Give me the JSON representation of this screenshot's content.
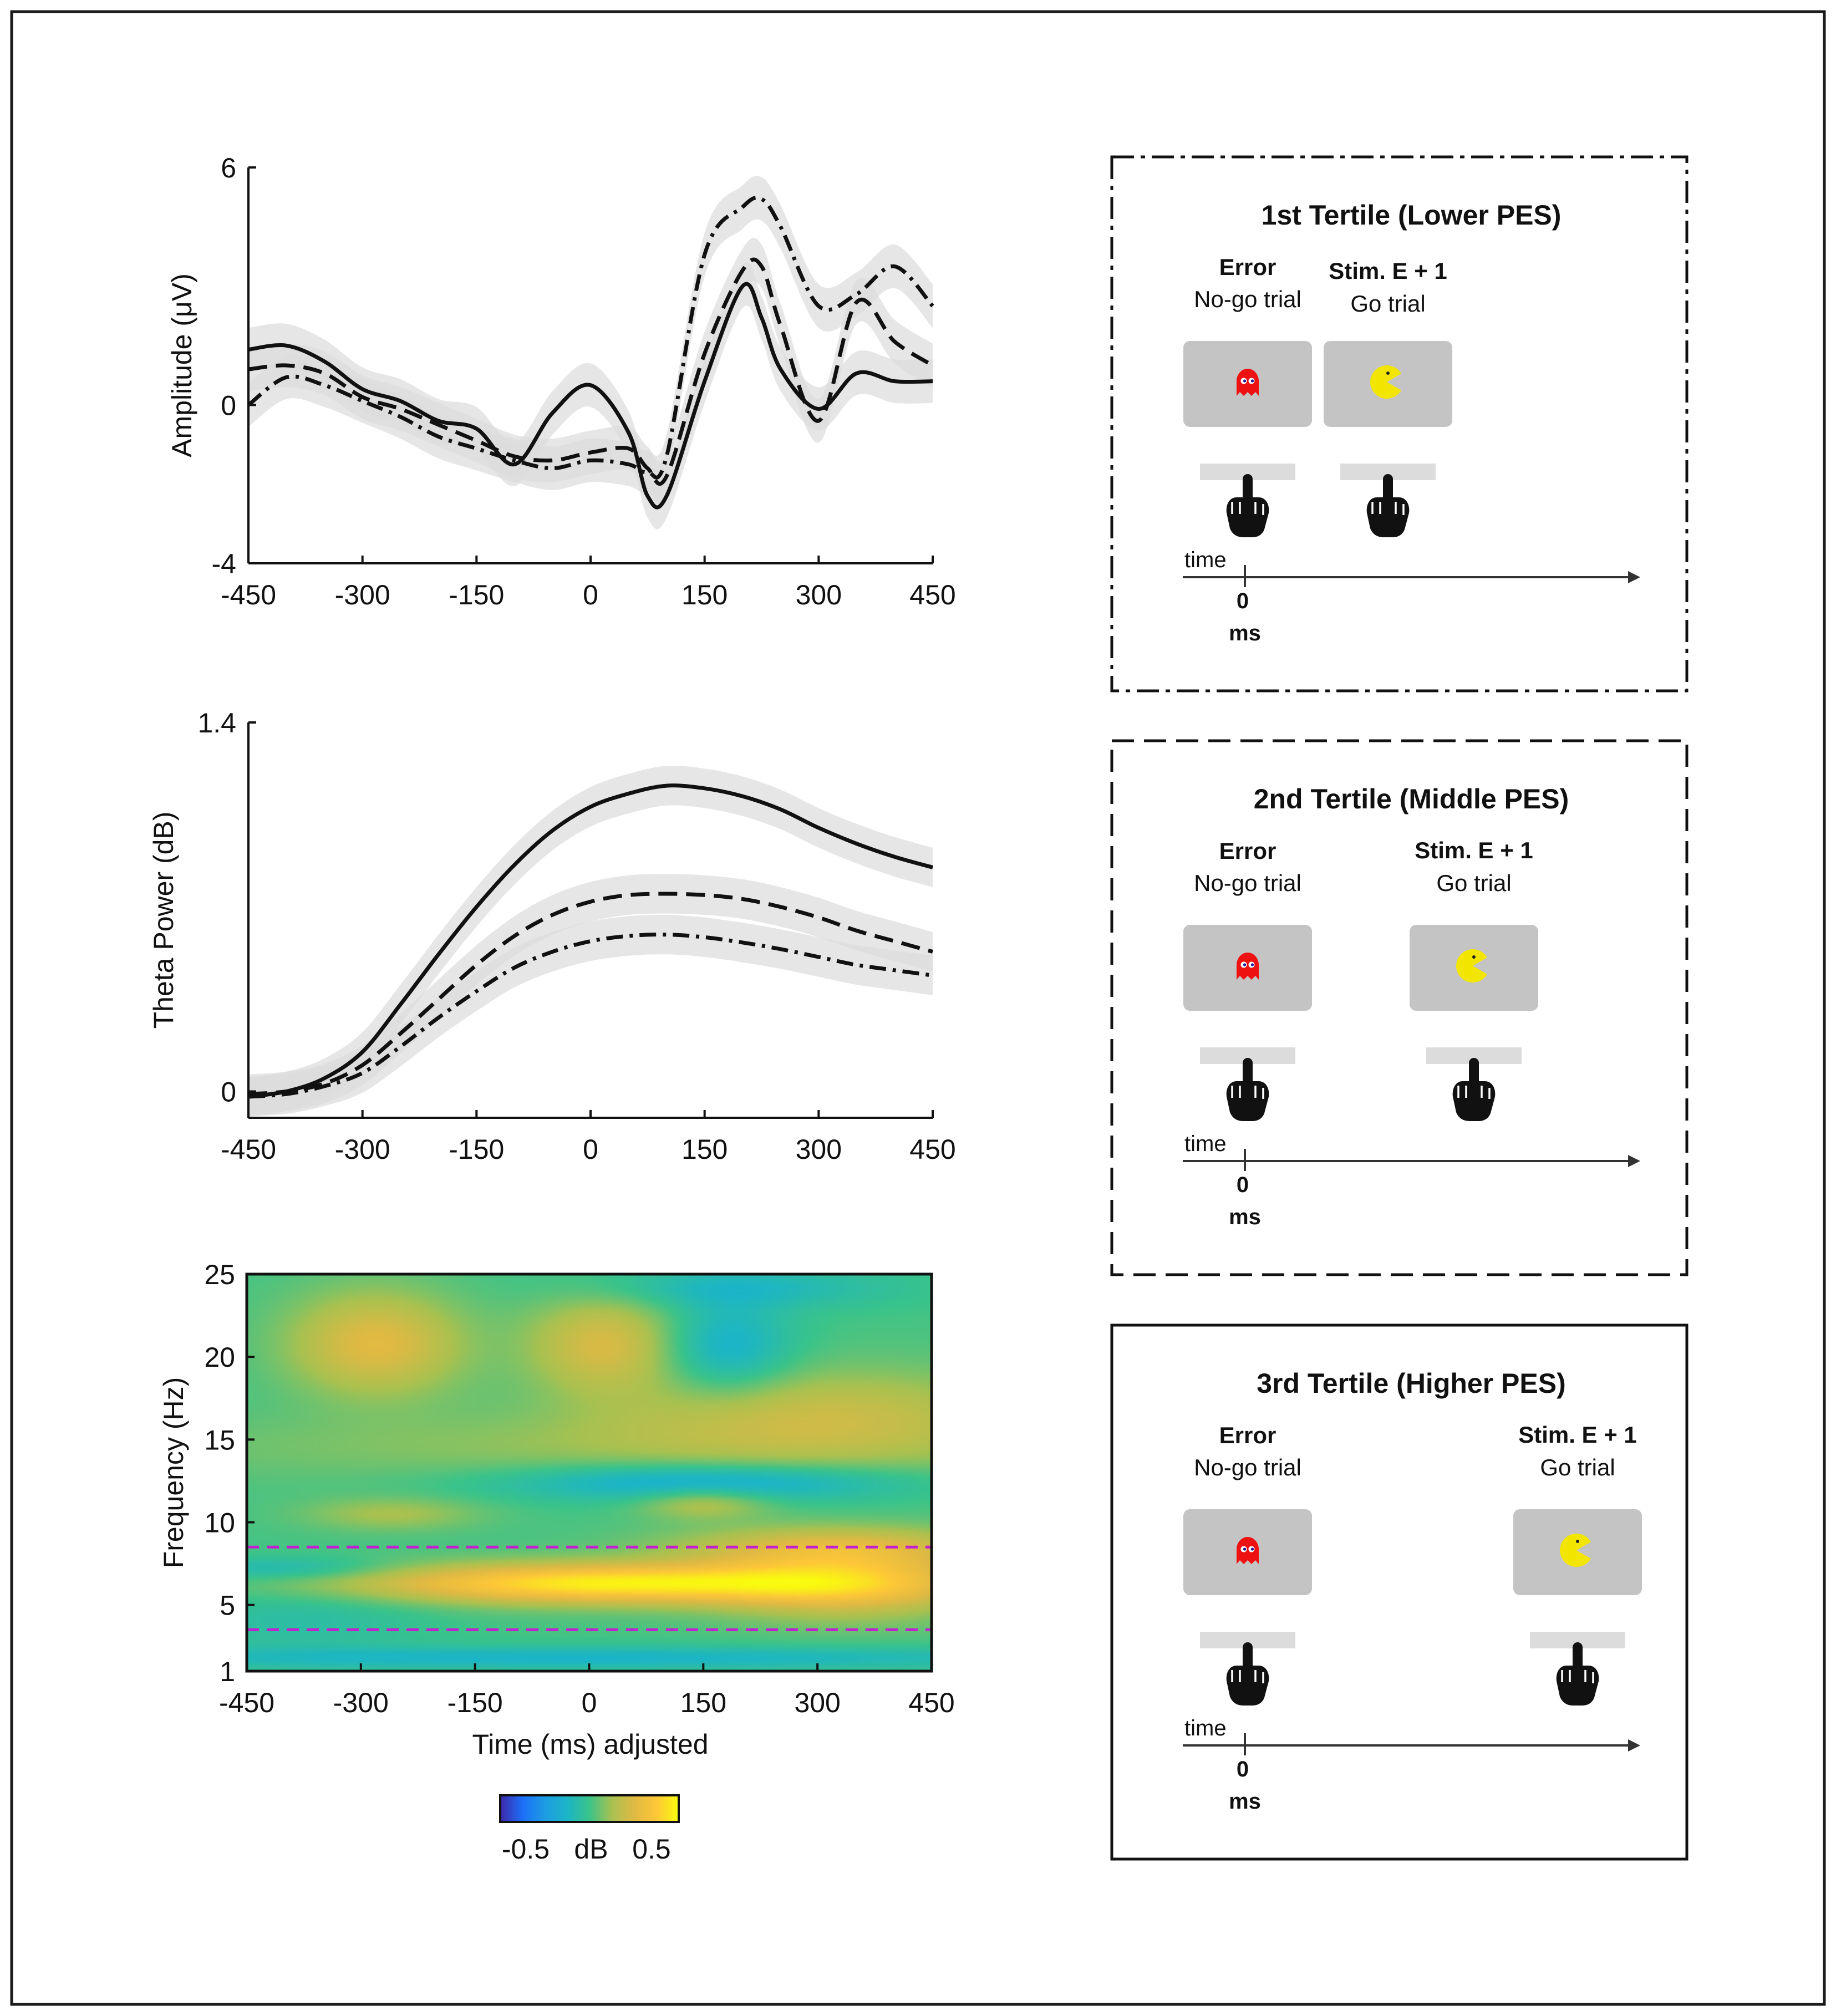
{
  "chart_data": [
    {
      "type": "line",
      "panel": "erp",
      "xlabel": "",
      "ylabel": "Amplitude (μV)",
      "xlim": [
        -450,
        450
      ],
      "ylim": [
        -4,
        6
      ],
      "xticks": [
        "-450",
        "-300",
        "-150",
        "0",
        "150",
        "300",
        "450"
      ],
      "yticks": [
        "-4",
        "0",
        "6"
      ],
      "x": [
        -450,
        -400,
        -350,
        -300,
        -250,
        -200,
        -150,
        -100,
        -50,
        0,
        50,
        75,
        100,
        150,
        200,
        225,
        250,
        300,
        350,
        400,
        450
      ],
      "series": [
        {
          "name": "3rd Tertile (Higher PES)",
          "style": "solid",
          "values": [
            1.4,
            1.5,
            1.1,
            0.4,
            0.1,
            -0.4,
            -0.6,
            -1.5,
            -0.2,
            0.5,
            -0.7,
            -2.3,
            -2.3,
            0.6,
            3.0,
            2.2,
            0.9,
            -0.1,
            0.8,
            0.6,
            0.6
          ]
        },
        {
          "name": "2nd Tertile (Middle PES)",
          "style": "dashed",
          "values": [
            0.9,
            1.0,
            0.8,
            0.2,
            -0.1,
            -0.5,
            -0.9,
            -1.3,
            -1.4,
            -1.2,
            -1.1,
            -1.6,
            -1.8,
            1.3,
            3.4,
            3.5,
            2.0,
            -0.4,
            2.6,
            1.6,
            1.0
          ]
        },
        {
          "name": "1st Tertile (Lower PES)",
          "style": "dashdot",
          "values": [
            0.0,
            0.7,
            0.5,
            0.1,
            -0.3,
            -0.8,
            -1.1,
            -1.4,
            -1.6,
            -1.4,
            -1.5,
            -1.7,
            -1.3,
            3.8,
            5.0,
            5.2,
            4.5,
            2.5,
            2.8,
            3.5,
            2.5
          ]
        }
      ]
    },
    {
      "type": "line",
      "panel": "theta",
      "xlabel": "",
      "ylabel": "Theta Power (dB)",
      "xlim": [
        -450,
        450
      ],
      "ylim": [
        -0.1,
        1.4
      ],
      "xticks": [
        "-450",
        "-300",
        "-150",
        "0",
        "150",
        "300",
        "450"
      ],
      "yticks": [
        "0",
        "1.4"
      ],
      "x": [
        -450,
        -400,
        -350,
        -300,
        -250,
        -200,
        -150,
        -100,
        -50,
        0,
        50,
        100,
        150,
        200,
        250,
        300,
        350,
        400,
        450
      ],
      "series": [
        {
          "name": "3rd Tertile (Higher PES)",
          "style": "solid",
          "values": [
            -0.02,
            0.0,
            0.05,
            0.15,
            0.33,
            0.52,
            0.7,
            0.86,
            0.99,
            1.08,
            1.13,
            1.16,
            1.15,
            1.12,
            1.07,
            1.0,
            0.94,
            0.89,
            0.85
          ]
        },
        {
          "name": "2nd Tertile (Middle PES)",
          "style": "dashed",
          "values": [
            -0.01,
            0.0,
            0.03,
            0.1,
            0.22,
            0.35,
            0.48,
            0.59,
            0.67,
            0.72,
            0.745,
            0.75,
            0.745,
            0.73,
            0.7,
            0.66,
            0.61,
            0.57,
            0.53
          ]
        },
        {
          "name": "1st Tertile (Lower PES)",
          "style": "dashdot",
          "values": [
            -0.02,
            -0.01,
            0.02,
            0.07,
            0.17,
            0.28,
            0.38,
            0.47,
            0.53,
            0.57,
            0.59,
            0.595,
            0.585,
            0.565,
            0.54,
            0.51,
            0.48,
            0.46,
            0.44
          ]
        }
      ]
    },
    {
      "type": "heatmap",
      "panel": "time-frequency",
      "xlabel": "Time (ms) adjusted",
      "ylabel": "Frequency (Hz)",
      "xlim": [
        -450,
        450
      ],
      "ylim": [
        1,
        25
      ],
      "xticks": [
        "-450",
        "-300",
        "-150",
        "0",
        "150",
        "300",
        "450"
      ],
      "yticks": [
        "1",
        "5",
        "10",
        "15",
        "20",
        "25"
      ],
      "reference_lines_hz": [
        3.5,
        8.5
      ],
      "colorbar": {
        "min": -0.7,
        "max": 0.7,
        "unit": "dB",
        "ticks": [
          "-0.5",
          "0.5"
        ],
        "label": "dB"
      },
      "blobs": [
        {
          "t": -280,
          "f": 20.8,
          "amp": 0.34,
          "sigma_t": 80,
          "sigma_f": 2.2
        },
        {
          "t": 20,
          "f": 20.8,
          "amp": 0.3,
          "sigma_t": 70,
          "sigma_f": 2.0
        },
        {
          "t": 30,
          "f": 6.3,
          "amp": 0.64,
          "sigma_t": 230,
          "sigma_f": 0.85
        },
        {
          "t": 340,
          "f": 6.3,
          "amp": 0.36,
          "sigma_t": 120,
          "sigma_f": 1.5
        },
        {
          "t": 320,
          "f": 8.5,
          "amp": 0.28,
          "sigma_t": 150,
          "sigma_f": 0.9
        },
        {
          "t": 300,
          "f": 16.5,
          "amp": 0.24,
          "sigma_t": 200,
          "sigma_f": 2.0
        },
        {
          "t": 0,
          "f": 14.5,
          "amp": 0.1,
          "sigma_t": 450,
          "sigma_f": 1.5
        },
        {
          "t": 150,
          "f": 11.2,
          "amp": 0.22,
          "sigma_t": 60,
          "sigma_f": 0.7
        },
        {
          "t": -260,
          "f": 10.5,
          "amp": 0.16,
          "sigma_t": 80,
          "sigma_f": 0.7
        },
        {
          "t": 150,
          "f": 12.4,
          "amp": -0.3,
          "sigma_t": 180,
          "sigma_f": 0.8
        },
        {
          "t": 180,
          "f": 20.5,
          "amp": -0.24,
          "sigma_t": 60,
          "sigma_f": 2.0
        },
        {
          "t": 200,
          "f": 24.2,
          "amp": -0.16,
          "sigma_t": 140,
          "sigma_f": 0.9
        },
        {
          "t": -400,
          "f": 7.2,
          "amp": -0.16,
          "sigma_t": 100,
          "sigma_f": 0.5
        },
        {
          "t": 0,
          "f": 1.8,
          "amp": -0.2,
          "sigma_t": 500,
          "sigma_f": 0.5
        },
        {
          "t": -380,
          "f": 4.2,
          "amp": -0.1,
          "sigma_t": 120,
          "sigma_f": 1.4
        }
      ]
    }
  ],
  "panels": [
    {
      "title": "1st Tertile (Lower PES)",
      "border": "dashdot",
      "error_label": "Error",
      "error_sub": "No-go trial",
      "next_label": "Stim. E + 1",
      "next_sub": "Go trial",
      "time_label": "time",
      "zero_label": "0",
      "ms_label": "ms"
    },
    {
      "title": "2nd Tertile (Middle PES)",
      "border": "dashed",
      "error_label": "Error",
      "error_sub": "No-go trial",
      "next_label": "Stim. E + 1",
      "next_sub": "Go trial",
      "time_label": "time",
      "zero_label": "0",
      "ms_label": "ms"
    },
    {
      "title": "3rd Tertile (Higher PES)",
      "border": "solid",
      "error_label": "Error",
      "error_sub": "No-go trial",
      "next_label": "Stim. E + 1",
      "next_sub": "Go trial",
      "time_label": "time",
      "zero_label": "0",
      "ms_label": "ms"
    }
  ],
  "icon_names": [
    "ghost-icon",
    "pacman-icon",
    "pointing-hand-icon"
  ],
  "colors": {
    "ghost": "#ee1111",
    "pacman": "#f2e600",
    "screen": "#c4c4c4",
    "reference_line": "#c21fd0",
    "band": "#dcdcdc"
  }
}
